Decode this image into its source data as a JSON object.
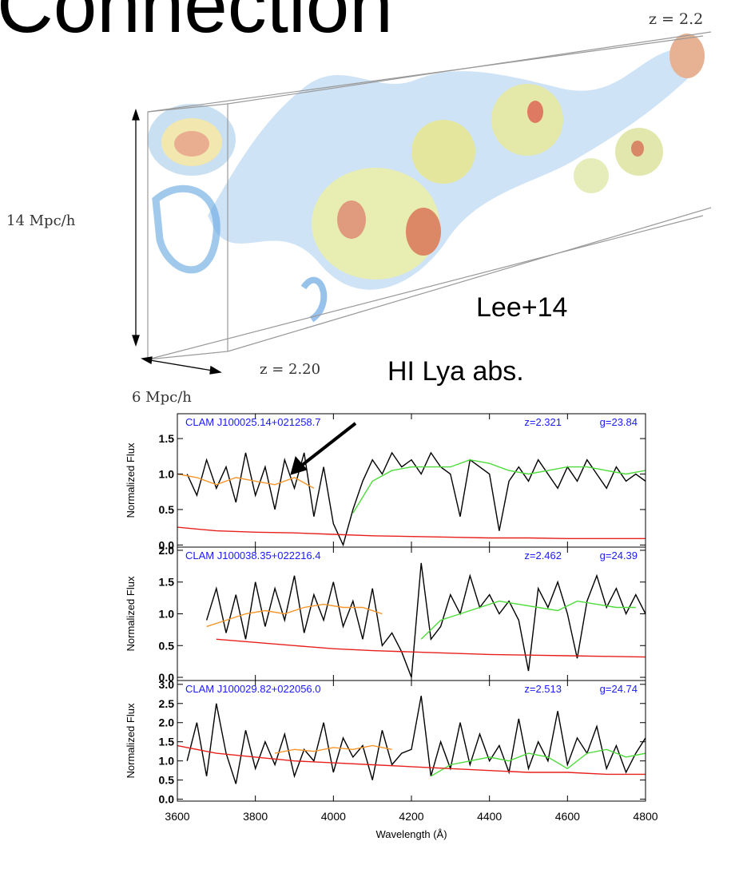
{
  "header": {
    "title": "Connection"
  },
  "figure": {
    "labels": {
      "z_top": "z = 2.2",
      "height": "14 Mpc/h",
      "credit": "Lee+14",
      "z_bottom": "z = 2.20",
      "depth": "6 Mpc/h",
      "arrow_label": "HI Lya abs."
    }
  },
  "chart_data": [
    {
      "type": "line",
      "annotations": [
        "CLAM J100025.14+021258.7",
        "z=2.321",
        "g=23.84"
      ],
      "ylabel": "Normalized Flux",
      "xlim": [
        3600,
        4800
      ],
      "ylim": [
        -0.03,
        1.85
      ],
      "xticks": [
        3600,
        3800,
        4000,
        4200,
        4400,
        4600,
        4800
      ],
      "yticks": [
        {
          "value": 0,
          "label": "0.0"
        },
        0.5,
        {
          "value": 1,
          "label": "1.0"
        },
        1.5
      ],
      "series": [
        {
          "color": "#000000",
          "x": [
            3625,
            3650,
            3675,
            3700,
            3725,
            3750,
            3775,
            3800,
            3825,
            3850,
            3875,
            3900,
            3925,
            3950,
            3975,
            4000,
            4025,
            4050,
            4075,
            4100,
            4125,
            4150,
            4175,
            4200,
            4225,
            4250,
            4275,
            4300,
            4325,
            4350,
            4375,
            4400,
            4425,
            4450,
            4475,
            4500,
            4525,
            4550,
            4575,
            4600,
            4625,
            4650,
            4675,
            4700,
            4725,
            4750,
            4775,
            4800
          ],
          "values": [
            1.0,
            0.7,
            1.2,
            0.8,
            1.1,
            0.6,
            1.3,
            0.7,
            1.1,
            0.5,
            1.2,
            0.8,
            1.3,
            0.4,
            1.1,
            0.3,
            0.0,
            0.5,
            0.9,
            1.2,
            1.0,
            1.3,
            1.1,
            1.2,
            1.0,
            1.3,
            1.1,
            1.0,
            0.4,
            1.2,
            1.1,
            1.0,
            0.2,
            0.9,
            1.1,
            0.9,
            1.2,
            1.0,
            0.8,
            1.1,
            0.9,
            1.2,
            1.0,
            0.8,
            1.1,
            0.9,
            1.0,
            0.9
          ]
        },
        {
          "color": "#f5962a",
          "x": [
            3600,
            3650,
            3700,
            3750,
            3800,
            3850,
            3900,
            3950
          ],
          "values": [
            1.0,
            0.95,
            0.85,
            0.95,
            0.9,
            0.85,
            0.95,
            0.8
          ]
        },
        {
          "color": "#4ddc3a",
          "x": [
            4050,
            4100,
            4150,
            4200,
            4250,
            4300,
            4350,
            4400,
            4450,
            4500,
            4550,
            4600,
            4650,
            4700,
            4750,
            4800
          ],
          "values": [
            0.45,
            0.9,
            1.05,
            1.1,
            1.1,
            1.1,
            1.2,
            1.15,
            1.05,
            1.0,
            1.05,
            1.1,
            1.1,
            1.05,
            1.0,
            1.05
          ]
        },
        {
          "color": "#e8201c",
          "x": [
            3600,
            3700,
            3800,
            3900,
            4000,
            4100,
            4200,
            4300,
            4400,
            4500,
            4600,
            4700,
            4800
          ],
          "values": [
            0.25,
            0.2,
            0.18,
            0.17,
            0.15,
            0.13,
            0.12,
            0.11,
            0.1,
            0.1,
            0.09,
            0.09,
            0.09
          ]
        }
      ]
    },
    {
      "type": "line",
      "annotations": [
        "CLAM J100038.35+022216.4",
        "z=2.462",
        "g=24.39"
      ],
      "ylabel": "Normalized Flux",
      "xlim": [
        3600,
        4800
      ],
      "ylim": [
        -0.05,
        2.05
      ],
      "xticks": [
        3600,
        3800,
        4000,
        4200,
        4400,
        4600,
        4800
      ],
      "yticks": [
        {
          "value": 0,
          "label": "0.0"
        },
        0.5,
        {
          "value": 1,
          "label": "1.0"
        },
        1.5,
        {
          "value": 2,
          "label": "2.0"
        }
      ],
      "series": [
        {
          "color": "#000000",
          "x": [
            3675,
            3700,
            3725,
            3750,
            3775,
            3800,
            3825,
            3850,
            3875,
            3900,
            3925,
            3950,
            3975,
            4000,
            4025,
            4050,
            4075,
            4100,
            4125,
            4150,
            4175,
            4200,
            4225,
            4250,
            4275,
            4300,
            4325,
            4350,
            4375,
            4400,
            4425,
            4450,
            4475,
            4500,
            4525,
            4550,
            4575,
            4600,
            4625,
            4650,
            4675,
            4700,
            4725,
            4750,
            4775,
            4800
          ],
          "values": [
            0.9,
            1.4,
            0.7,
            1.3,
            0.6,
            1.5,
            0.8,
            1.4,
            0.9,
            1.6,
            0.7,
            1.3,
            0.9,
            1.5,
            0.8,
            1.2,
            0.6,
            1.4,
            0.5,
            0.7,
            0.4,
            0.0,
            1.8,
            0.6,
            0.8,
            1.3,
            1.0,
            1.6,
            1.1,
            1.3,
            1.0,
            1.2,
            0.9,
            0.1,
            1.4,
            1.1,
            1.5,
            1.0,
            0.3,
            1.2,
            1.6,
            1.1,
            1.4,
            1.0,
            1.3,
            1.0
          ]
        },
        {
          "color": "#f5962a",
          "x": [
            3675,
            3725,
            3775,
            3825,
            3875,
            3925,
            3975,
            4025,
            4075,
            4125
          ],
          "values": [
            0.8,
            0.9,
            1.0,
            1.05,
            1.0,
            1.1,
            1.15,
            1.1,
            1.1,
            1.0
          ]
        },
        {
          "color": "#4ddc3a",
          "x": [
            4225,
            4275,
            4325,
            4375,
            4425,
            4475,
            4525,
            4575,
            4625,
            4675,
            4725,
            4775
          ],
          "values": [
            0.6,
            0.9,
            1.0,
            1.1,
            1.2,
            1.15,
            1.1,
            1.05,
            1.2,
            1.15,
            1.1,
            1.1
          ]
        },
        {
          "color": "#e8201c",
          "x": [
            3700,
            3800,
            3900,
            4000,
            4100,
            4200,
            4300,
            4400,
            4500,
            4600,
            4700,
            4800
          ],
          "values": [
            0.6,
            0.55,
            0.5,
            0.45,
            0.42,
            0.4,
            0.38,
            0.36,
            0.35,
            0.34,
            0.33,
            0.32
          ]
        }
      ]
    },
    {
      "type": "line",
      "annotations": [
        "CLAM J100029.82+022056.0",
        "z=2.513",
        "g=24.74"
      ],
      "ylabel": "Normalized Flux",
      "xlabel": "Wavelength (Å)",
      "xlim": [
        3600,
        4800
      ],
      "ylim": [
        -0.05,
        3.1
      ],
      "xticks": [
        3600,
        3800,
        4000,
        4200,
        4400,
        4600,
        4800
      ],
      "yticks": [
        {
          "value": 0,
          "label": "0.0"
        },
        0.5,
        {
          "value": 1,
          "label": "1.0"
        },
        1.5,
        {
          "value": 2,
          "label": "2.0"
        },
        2.5,
        {
          "value": 3,
          "label": "3.0"
        }
      ],
      "series": [
        {
          "color": "#000000",
          "x": [
            3625,
            3650,
            3675,
            3700,
            3725,
            3750,
            3775,
            3800,
            3825,
            3850,
            3875,
            3900,
            3925,
            3950,
            3975,
            4000,
            4025,
            4050,
            4075,
            4100,
            4125,
            4150,
            4175,
            4200,
            4225,
            4250,
            4275,
            4300,
            4325,
            4350,
            4375,
            4400,
            4425,
            4450,
            4475,
            4500,
            4525,
            4550,
            4575,
            4600,
            4625,
            4650,
            4675,
            4700,
            4725,
            4750,
            4775,
            4800
          ],
          "values": [
            1.0,
            2.0,
            0.6,
            2.5,
            1.2,
            0.4,
            1.8,
            0.8,
            1.5,
            0.9,
            1.7,
            0.6,
            1.3,
            1.0,
            2.0,
            0.7,
            1.6,
            1.1,
            1.4,
            0.5,
            1.8,
            0.9,
            1.2,
            1.3,
            2.7,
            0.6,
            1.5,
            0.8,
            2.0,
            0.9,
            1.7,
            1.0,
            1.4,
            0.7,
            2.1,
            0.8,
            1.5,
            1.0,
            2.3,
            0.9,
            1.6,
            1.2,
            1.9,
            0.8,
            1.4,
            0.7,
            1.2,
            1.6
          ]
        },
        {
          "color": "#f5962a",
          "x": [
            3850,
            3900,
            3950,
            4000,
            4050,
            4100,
            4150
          ],
          "values": [
            1.2,
            1.3,
            1.25,
            1.35,
            1.3,
            1.4,
            1.3
          ]
        },
        {
          "color": "#4ddc3a",
          "x": [
            4250,
            4300,
            4350,
            4400,
            4450,
            4500,
            4550,
            4600,
            4650,
            4700,
            4750,
            4800
          ],
          "values": [
            0.6,
            0.9,
            1.0,
            1.1,
            1.0,
            1.2,
            1.1,
            0.8,
            1.2,
            1.3,
            1.1,
            1.2
          ]
        },
        {
          "color": "#e8201c",
          "x": [
            3600,
            3700,
            3800,
            3900,
            4000,
            4100,
            4200,
            4300,
            4400,
            4500,
            4600,
            4700,
            4800
          ],
          "values": [
            1.4,
            1.2,
            1.1,
            1.0,
            0.95,
            0.9,
            0.85,
            0.8,
            0.75,
            0.7,
            0.7,
            0.65,
            0.65
          ]
        }
      ]
    }
  ]
}
